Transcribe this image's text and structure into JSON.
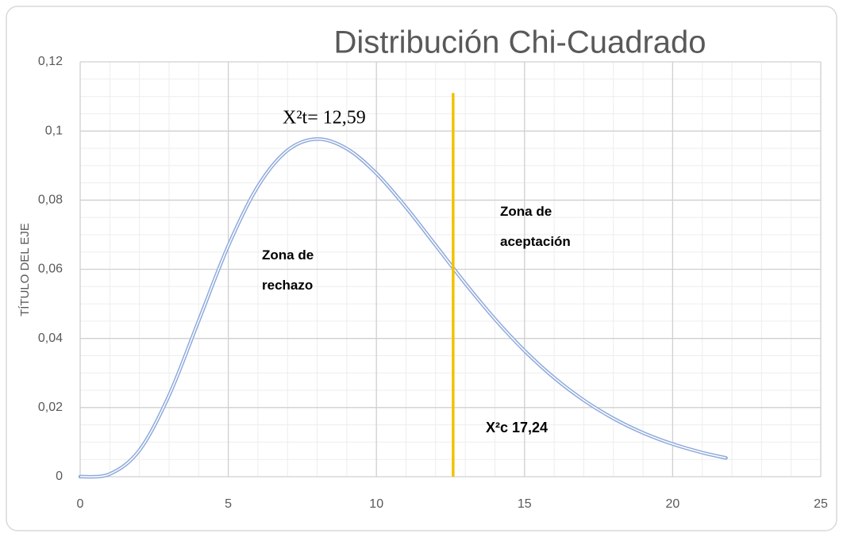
{
  "chart_data": {
    "type": "line",
    "title": "Distribución Chi-Cuadrado",
    "y_label": "TÍTULO DEL EJE",
    "x": [
      0,
      1,
      2,
      3,
      4,
      5,
      6,
      7,
      8,
      9,
      10,
      11,
      12,
      13,
      14,
      15,
      16,
      17,
      18,
      19,
      20,
      21,
      21.8
    ],
    "series": [
      {
        "color": "#8faadc",
        "values": [
          0,
          0.00079,
          0.00766,
          0.02353,
          0.04511,
          0.0668,
          0.08402,
          0.09441,
          0.09768,
          0.0949,
          0.08773,
          0.07791,
          0.06693,
          0.05591,
          0.04561,
          0.03646,
          0.02863,
          0.02213,
          0.01687,
          0.0127,
          0.00946,
          0.00697,
          0.00544
        ]
      }
    ],
    "reference_line": {
      "x": 12.59,
      "y": [
        0,
        0.111
      ],
      "color": "#f2c200"
    },
    "annotations": [
      "X²t= 12,59",
      "Zona de aceptación",
      "Zona de rechazo",
      "X²c 17,24"
    ],
    "xlim": [
      0,
      25
    ],
    "xticks": [
      0,
      5,
      10,
      15,
      20,
      25
    ],
    "ylim": [
      0,
      0.12
    ],
    "yticks": [
      0,
      {
        "value": 0.02,
        "label": "0,02"
      },
      {
        "value": 0.04,
        "label": "0,04"
      },
      {
        "value": 0.06,
        "label": "0,06"
      },
      {
        "value": 0.08,
        "label": "0,08"
      },
      {
        "value": 0.1,
        "label": "0,1"
      },
      {
        "value": 0.12,
        "label": "0,12"
      }
    ],
    "x_minor_step": 1,
    "y_minor_step": 0.005,
    "grid": true
  }
}
